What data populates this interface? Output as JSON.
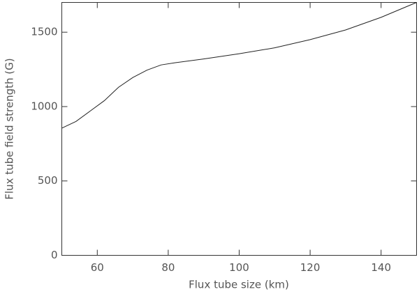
{
  "chart_data": {
    "type": "line",
    "xlabel": "Flux tube size (km)",
    "ylabel": "Flux tube field strength (G)",
    "x": [
      50,
      54,
      58,
      62,
      66,
      70,
      74,
      78,
      82,
      90,
      100,
      110,
      120,
      130,
      140,
      150
    ],
    "series": [
      {
        "color": "#222222",
        "values": [
          855,
          900,
          970,
          1040,
          1130,
          1195,
          1245,
          1280,
          1295,
          1320,
          1355,
          1395,
          1450,
          1515,
          1600,
          1700
        ]
      }
    ],
    "xlim": [
      50,
      150
    ],
    "xticks": [
      60,
      80,
      100,
      120,
      140
    ],
    "ylim": [
      0,
      1700
    ],
    "yticks": [
      0,
      500,
      1000,
      1500
    ]
  }
}
